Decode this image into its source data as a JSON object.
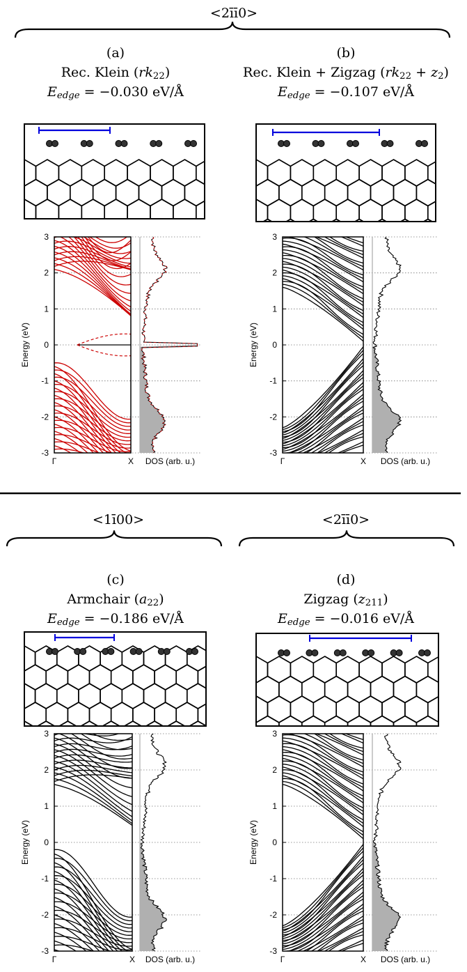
{
  "top_group": {
    "direction": "<2īī0>",
    "panels": [
      "a",
      "b"
    ]
  },
  "bottom_groups": [
    {
      "direction": "<1ī00>",
      "panels": [
        "c"
      ]
    },
    {
      "direction": "<2īī0>",
      "panels": [
        "d"
      ]
    }
  ],
  "panels": {
    "a": {
      "label": "(a)",
      "name": "Rec. Klein (rk",
      "sub": "22",
      "name_tail": ")",
      "energy_prefix": "E",
      "energy_sub": "edge",
      "energy_value": " = −0.030 eV/Å",
      "series_color": "#cc0000"
    },
    "b": {
      "label": "(b)",
      "name": "Rec. Klein + Zigzag (rk",
      "sub": "22",
      "name_mid": " + z",
      "sub2": "2",
      "name_tail": ")",
      "energy_prefix": "E",
      "energy_sub": "edge",
      "energy_value": " = −0.107 eV/Å",
      "series_color": "#000000"
    },
    "c": {
      "label": "(c)",
      "name": "Armchair (a",
      "sub": "22",
      "name_tail": ")",
      "energy_prefix": "E",
      "energy_sub": "edge",
      "energy_value": " = −0.186 eV/Å",
      "series_color": "#000000"
    },
    "d": {
      "label": "(d)",
      "name": "Zigzag (z",
      "sub": "211",
      "name_tail": ")",
      "energy_prefix": "E",
      "energy_sub": "edge",
      "energy_value": " = −0.016 eV/Å",
      "series_color": "#000000"
    }
  },
  "chart_data": [
    {
      "panel": "a",
      "type": "line",
      "ylabel": "Energy (eV)",
      "ylim": [
        -3,
        3
      ],
      "yticks": [
        "3",
        "2",
        "1",
        "0",
        "-1",
        "-2",
        "-3"
      ],
      "xticks": [
        "Γ",
        "X"
      ],
      "dos_label": "DOS (arb. u.)",
      "grid": "dotted horizontal",
      "dos_fill": "#b0b0b0"
    },
    {
      "panel": "b",
      "type": "line",
      "ylabel": "Energy (eV)",
      "ylim": [
        -3,
        3
      ],
      "yticks": [
        "3",
        "2",
        "1",
        "0",
        "-1",
        "-2",
        "-3"
      ],
      "xticks": [
        "Γ",
        "X"
      ],
      "dos_label": "DOS (arb. u.)",
      "grid": "dotted horizontal",
      "dos_fill": "#b0b0b0"
    },
    {
      "panel": "c",
      "type": "line",
      "ylabel": "Energy (eV)",
      "ylim": [
        -3,
        3
      ],
      "yticks": [
        "3",
        "2",
        "1",
        "0",
        "-1",
        "-2",
        "-3"
      ],
      "xticks": [
        "Γ",
        "X"
      ],
      "dos_label": "DOS (arb. u.)",
      "grid": "dotted horizontal",
      "dos_fill": "#b0b0b0"
    },
    {
      "panel": "d",
      "type": "line",
      "ylabel": "Energy (eV)",
      "ylim": [
        -3,
        3
      ],
      "yticks": [
        "3",
        "2",
        "1",
        "0",
        "-1",
        "-2",
        "-3"
      ],
      "xticks": [
        "Γ",
        "X"
      ],
      "dos_label": "DOS (arb. u.)",
      "grid": "dotted horizontal",
      "dos_fill": "#b0b0b0"
    }
  ]
}
